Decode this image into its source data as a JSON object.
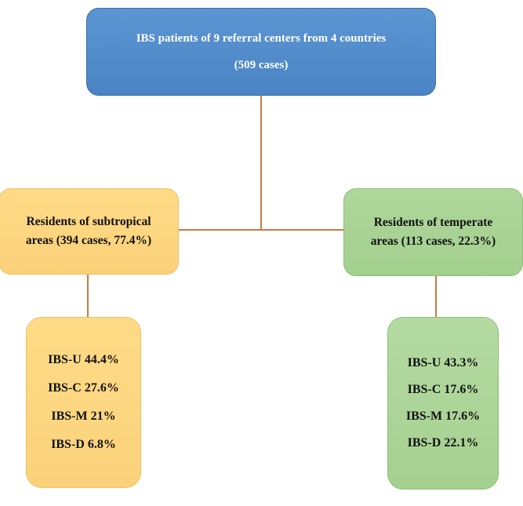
{
  "top_node": {
    "line1": "IBS patients of 9 referral centers from 4 countries",
    "line2": "(509 cases)",
    "color": "#4f89c9"
  },
  "subtropical": {
    "line1": "Residents of subtropical",
    "line2": "areas (394 cases, 77.4%)",
    "color": "#fcd47e",
    "items": [
      {
        "label": "IBS-U",
        "value": "44.4%"
      },
      {
        "label": "IBS-C",
        "value": "27.6%"
      },
      {
        "label": "IBS-M",
        "value": "21%"
      },
      {
        "label": "IBS-D",
        "value": "6.8%"
      }
    ]
  },
  "temperate": {
    "line1": "Residents of temperate",
    "line2": "areas (113 cases, 22.3%)",
    "color": "#a8d394",
    "items": [
      {
        "label": "IBS-U",
        "value": "43.3%"
      },
      {
        "label": "IBS-C",
        "value": "17.6%"
      },
      {
        "label": "IBS-M",
        "value": "17.6%"
      },
      {
        "label": "IBS-D",
        "value": "22.1%"
      }
    ]
  },
  "connector_color": "#c97a45"
}
